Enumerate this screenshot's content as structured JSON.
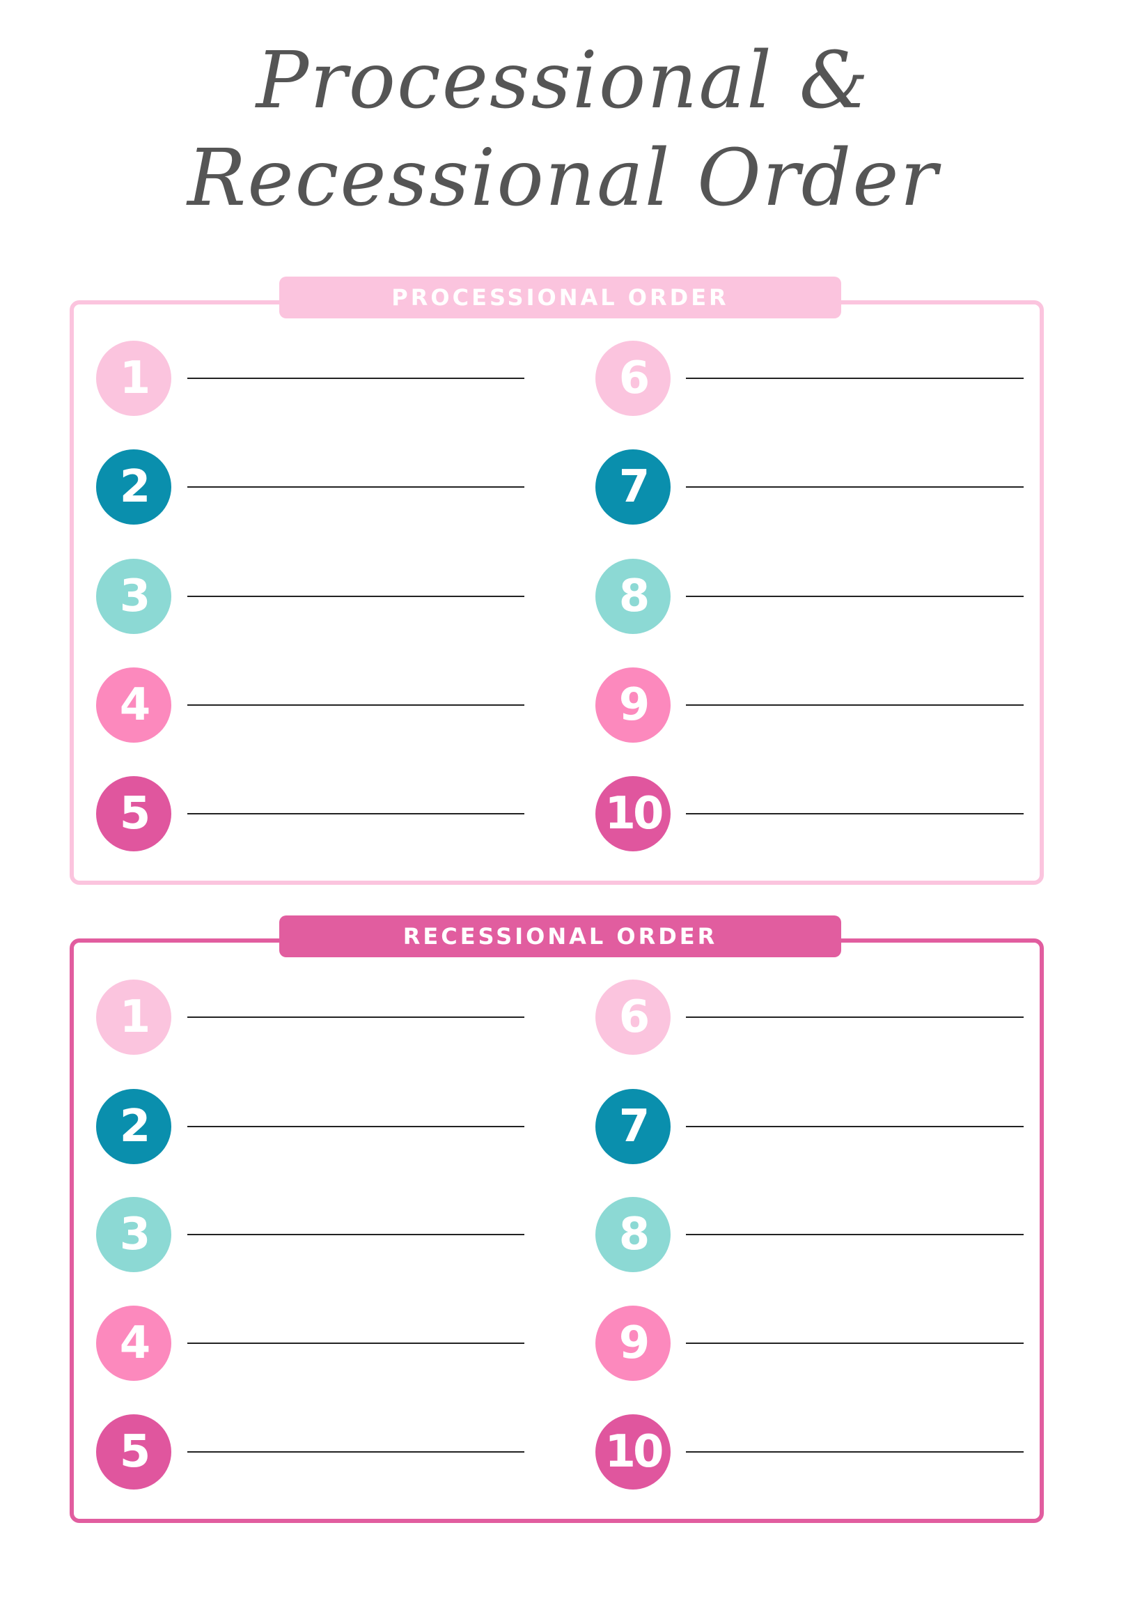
{
  "title": {
    "line1": "Processional &",
    "line2": "Recessional Order"
  },
  "colors": {
    "processional_border": "#fbc4de",
    "recessional_border": "#e15d9f",
    "number_colors": [
      "#fbc4de",
      "#0a8fad",
      "#8cd9d4",
      "#fc89bd",
      "#e0569e"
    ]
  },
  "sections": [
    {
      "heading": "PROCESSIONAL ORDER",
      "numbers": [
        "1",
        "2",
        "3",
        "4",
        "5",
        "6",
        "7",
        "8",
        "9",
        "10"
      ]
    },
    {
      "heading": "RECESSIONAL ORDER",
      "numbers": [
        "1",
        "2",
        "3",
        "4",
        "5",
        "6",
        "7",
        "8",
        "9",
        "10"
      ]
    }
  ]
}
